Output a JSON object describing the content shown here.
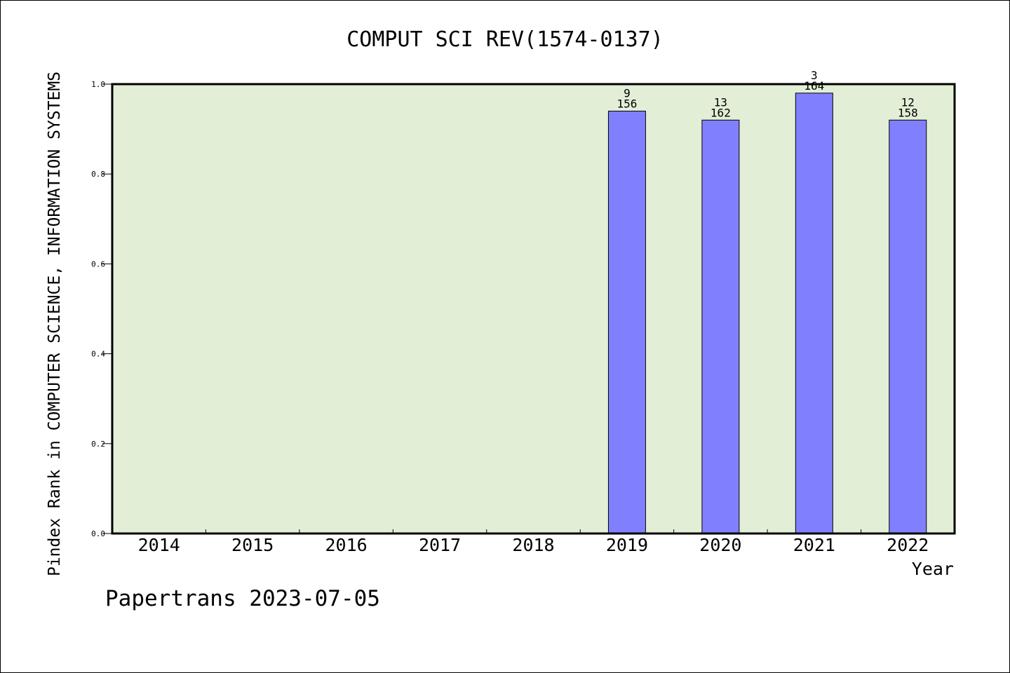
{
  "chart_data": {
    "type": "bar",
    "title": "COMPUT SCI REV(1574-0137)",
    "xlabel": "Year",
    "ylabel": "Pindex Rank in COMPUTER SCIENCE, INFORMATION SYSTEMS",
    "categories": [
      "2014",
      "2015",
      "2016",
      "2017",
      "2018",
      "2019",
      "2020",
      "2021",
      "2022"
    ],
    "values": [
      null,
      null,
      null,
      null,
      null,
      0.94,
      0.92,
      0.98,
      0.92
    ],
    "rank_labels": [
      "",
      "",
      "",
      "",
      "",
      "9",
      "13",
      "3",
      "12"
    ],
    "total_labels": [
      "",
      "",
      "",
      "",
      "",
      "156",
      "162",
      "164",
      "158"
    ],
    "ylim": [
      0,
      1.0
    ],
    "yticks": [
      "0.0",
      "0.2",
      "0.4",
      "0.6",
      "0.8",
      "1.0"
    ],
    "grid": false,
    "colors": {
      "plot_background": "#e2efd6",
      "bar_fill": "#8080ff",
      "bar_stroke": "#000000"
    }
  },
  "footer": "Papertrans 2023-07-05"
}
